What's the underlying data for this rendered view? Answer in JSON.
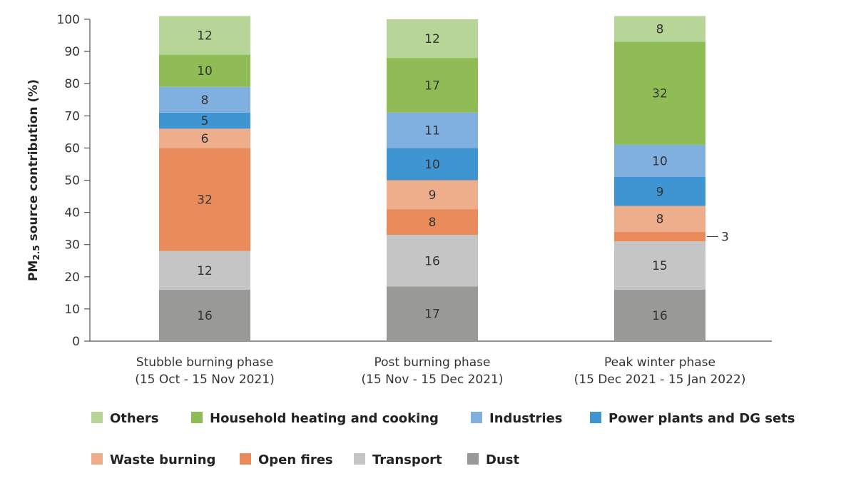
{
  "chart_data": {
    "type": "bar",
    "stacked": true,
    "title": "",
    "xlabel": "",
    "ylabel": "PM2.5 source contribution (%)",
    "ylabel_parts": {
      "pm": "PM",
      "sub": "2.5",
      "rest": " source contribution (%)"
    },
    "ylim": [
      0,
      100
    ],
    "yticks": [
      0,
      10,
      20,
      30,
      40,
      50,
      60,
      70,
      80,
      90,
      100
    ],
    "categories": [
      [
        "Stubble burning phase",
        "(15 Oct - 15 Nov 2021)"
      ],
      [
        "Post burning phase",
        "(15 Nov - 15 Dec 2021)"
      ],
      [
        "Peak winter phase",
        "(15 Dec 2021 - 15 Jan 2022)"
      ]
    ],
    "series": [
      {
        "name": "Dust",
        "color": "#999a98",
        "values": [
          16,
          17,
          16
        ]
      },
      {
        "name": "Transport",
        "color": "#c6c5c6",
        "values": [
          12,
          16,
          15
        ]
      },
      {
        "name": "Open fires",
        "color": "#e98b5a",
        "values": [
          32,
          8,
          3
        ]
      },
      {
        "name": "Waste burning",
        "color": "#efae8b",
        "values": [
          6,
          9,
          8
        ]
      },
      {
        "name": "Power plants and DG sets",
        "color": "#3f95d2",
        "values": [
          5,
          10,
          9
        ]
      },
      {
        "name": "Industries",
        "color": "#7fb0e0",
        "values": [
          8,
          11,
          10
        ]
      },
      {
        "name": "Household heating and cooking",
        "color": "#8fbc55",
        "values": [
          10,
          17,
          32
        ]
      },
      {
        "name": "Others",
        "color": "#b8d598",
        "values": [
          12,
          12,
          8
        ]
      }
    ],
    "callout_outside": {
      "category": 2,
      "series": "Open fires"
    },
    "legend": {
      "position": "bottom",
      "rows": [
        [
          "Others",
          "Household heating and cooking",
          "Industries",
          "Power plants and DG sets"
        ],
        [
          "Waste burning",
          "Open fires",
          "Transport",
          "Dust"
        ]
      ]
    },
    "grid": false
  }
}
